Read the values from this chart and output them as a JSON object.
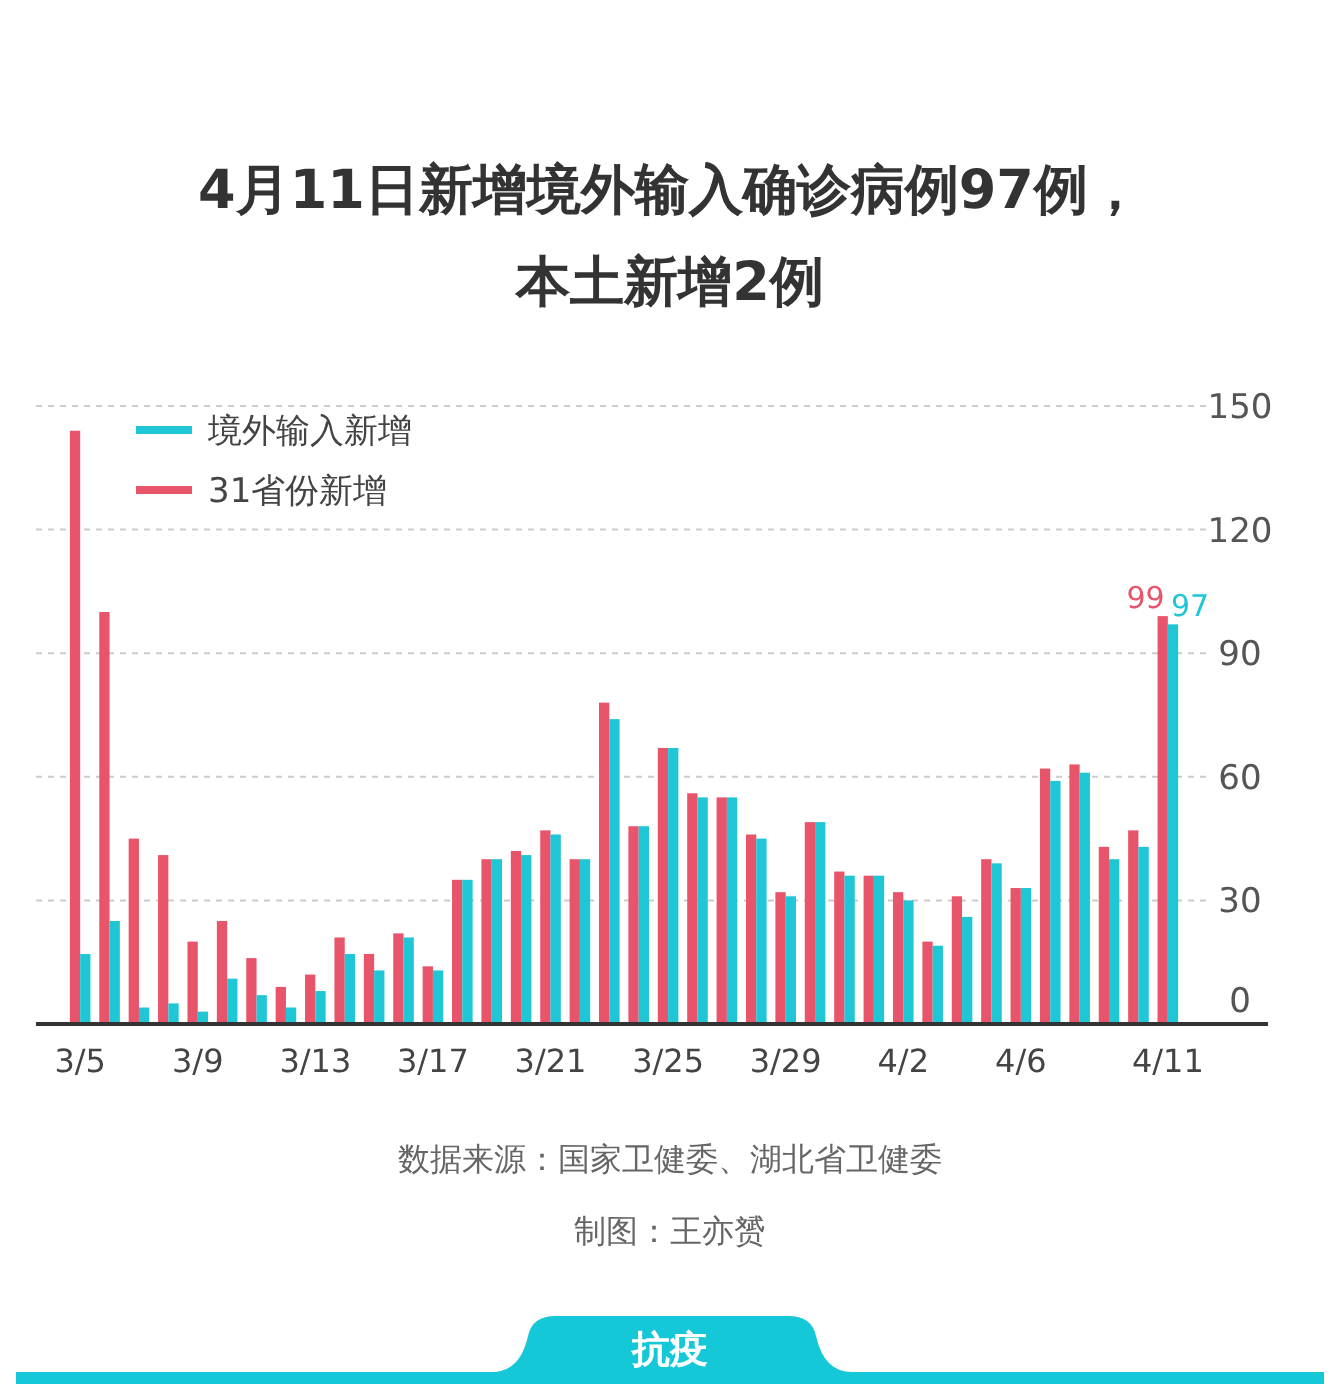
{
  "chart_data": {
    "type": "bar",
    "title": "4月11日新增境外输入确诊病例97例，本土新增2例",
    "categories": [
      "3/5",
      null,
      null,
      null,
      "3/9",
      null,
      null,
      null,
      "3/13",
      null,
      null,
      null,
      "3/17",
      null,
      null,
      null,
      "3/21",
      null,
      null,
      null,
      "3/25",
      null,
      null,
      null,
      "3/29",
      null,
      null,
      null,
      "4/2",
      null,
      null,
      null,
      "4/6",
      null,
      null,
      null,
      null,
      "4/11"
    ],
    "series": [
      {
        "name": "31省份新增",
        "color": "#e8546a",
        "values": [
          144,
          100,
          45,
          41,
          20,
          25,
          16,
          9,
          12,
          21,
          17,
          22,
          14,
          35,
          40,
          42,
          47,
          40,
          78,
          48,
          67,
          56,
          55,
          46,
          32,
          49,
          37,
          36,
          32,
          20,
          31,
          40,
          33,
          62,
          63,
          43,
          47,
          99
        ],
        "value_labels": [
          null,
          null,
          null,
          null,
          null,
          null,
          null,
          null,
          null,
          null,
          null,
          null,
          null,
          null,
          null,
          null,
          null,
          null,
          null,
          null,
          null,
          null,
          null,
          null,
          null,
          null,
          null,
          null,
          null,
          null,
          null,
          null,
          null,
          null,
          null,
          null,
          null,
          "99"
        ]
      },
      {
        "name": "境外输入新增",
        "color": "#1ec6d6",
        "values": [
          17,
          25,
          4,
          5,
          3,
          11,
          7,
          4,
          8,
          17,
          13,
          21,
          13,
          35,
          40,
          41,
          46,
          40,
          74,
          48,
          67,
          55,
          55,
          45,
          31,
          49,
          36,
          36,
          30,
          19,
          26,
          39,
          33,
          59,
          61,
          40,
          43,
          97
        ],
        "value_labels": [
          null,
          null,
          null,
          null,
          null,
          null,
          null,
          null,
          null,
          null,
          null,
          null,
          null,
          null,
          null,
          null,
          null,
          null,
          null,
          null,
          null,
          null,
          null,
          null,
          null,
          null,
          null,
          null,
          null,
          null,
          null,
          null,
          null,
          null,
          null,
          null,
          null,
          "97"
        ]
      }
    ],
    "ylim": [
      0,
      150
    ],
    "yticks": [
      0,
      30,
      60,
      90,
      120,
      150
    ],
    "grid": "y",
    "legend": "top left",
    "annotations": [
      "数据来源：国家卫健委、湖北省卫健委",
      "制图：王亦赟",
      "抗疫"
    ]
  }
}
